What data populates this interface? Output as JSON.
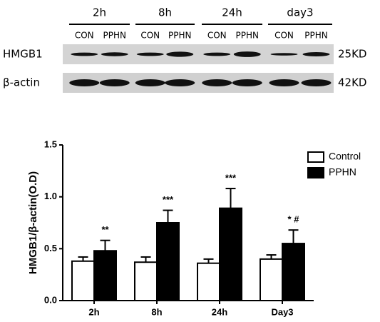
{
  "blot": {
    "time_points": [
      {
        "label": "2h",
        "lanes": [
          "CON",
          "PPHN"
        ]
      },
      {
        "label": "8h",
        "lanes": [
          "CON",
          "PPHN"
        ]
      },
      {
        "label": "24h",
        "lanes": [
          "CON",
          "PPHN"
        ]
      },
      {
        "label": "day3",
        "lanes": [
          "CON",
          "PPHN"
        ]
      }
    ],
    "rows": [
      {
        "label": "HMGB1",
        "size": "25KD"
      },
      {
        "label": "β-actin",
        "size": "42KD"
      }
    ]
  },
  "chart_data": {
    "type": "bar",
    "y_label": "HMGB1/β-actin(O.D)",
    "categories": [
      "2h",
      "8h",
      "24h",
      "Day3"
    ],
    "series": [
      {
        "name": "Control",
        "color": "#ffffff",
        "values": [
          0.38,
          0.37,
          0.36,
          0.4
        ],
        "errors": [
          0.04,
          0.05,
          0.04,
          0.04
        ]
      },
      {
        "name": "PPHN",
        "color": "#000000",
        "values": [
          0.48,
          0.75,
          0.89,
          0.55
        ],
        "errors": [
          0.1,
          0.12,
          0.19,
          0.13
        ],
        "annotations": [
          "**",
          "***",
          "***",
          "* #"
        ]
      }
    ],
    "ylim": [
      0,
      1.5
    ],
    "yticks": [
      {
        "value": 0,
        "label": "0.0"
      },
      {
        "value": 0.5,
        "label": "0.5"
      },
      {
        "value": 1,
        "label": "1.0"
      },
      {
        "value": 1.5,
        "label": "1.5"
      }
    ],
    "legend": "upper right"
  }
}
